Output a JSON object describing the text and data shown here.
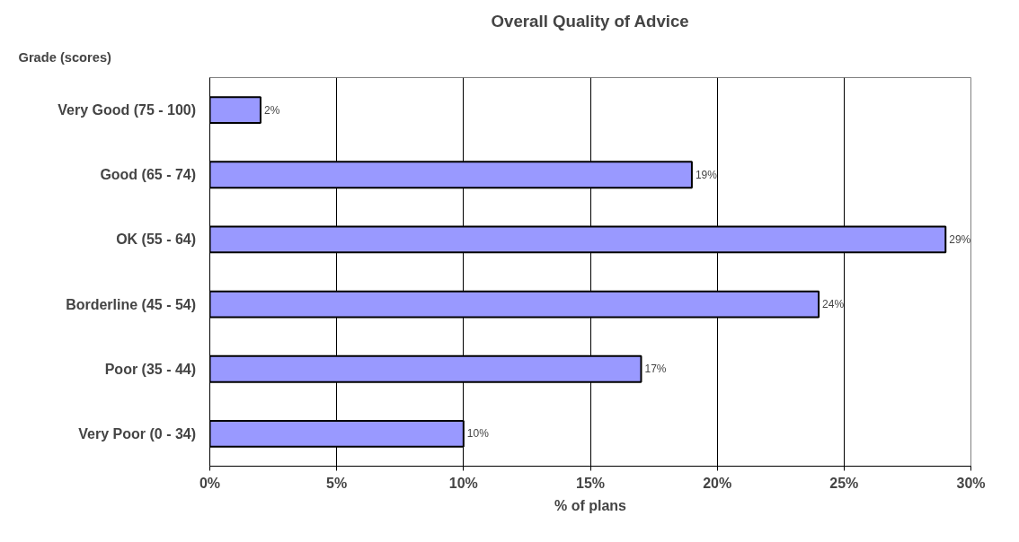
{
  "chart_data": {
    "type": "bar",
    "orientation": "horizontal",
    "title": "Overall Quality of Advice",
    "ylabel": "Grade (scores)",
    "xlabel": "% of plans",
    "categories": [
      "Very Good  (75 - 100)",
      "Good  (65 - 74)",
      "OK  (55 - 64)",
      "Borderline  (45 - 54)",
      "Poor  (35 - 44)",
      "Very Poor  (0 - 34)"
    ],
    "values": [
      2,
      19,
      29,
      24,
      17,
      10
    ],
    "value_labels": [
      "2%",
      "19%",
      "29%",
      "24%",
      "17%",
      "10%"
    ],
    "color": "#9999ff",
    "xlim": [
      0,
      30
    ],
    "xticks": [
      {
        "value": 0,
        "label": "0%"
      },
      {
        "value": 5,
        "label": "5%"
      },
      {
        "value": 10,
        "label": "10%"
      },
      {
        "value": 15,
        "label": "15%"
      },
      {
        "value": 20,
        "label": "20%"
      },
      {
        "value": 25,
        "label": "25%"
      },
      {
        "value": 30,
        "label": "30%"
      }
    ],
    "grid": "x"
  }
}
